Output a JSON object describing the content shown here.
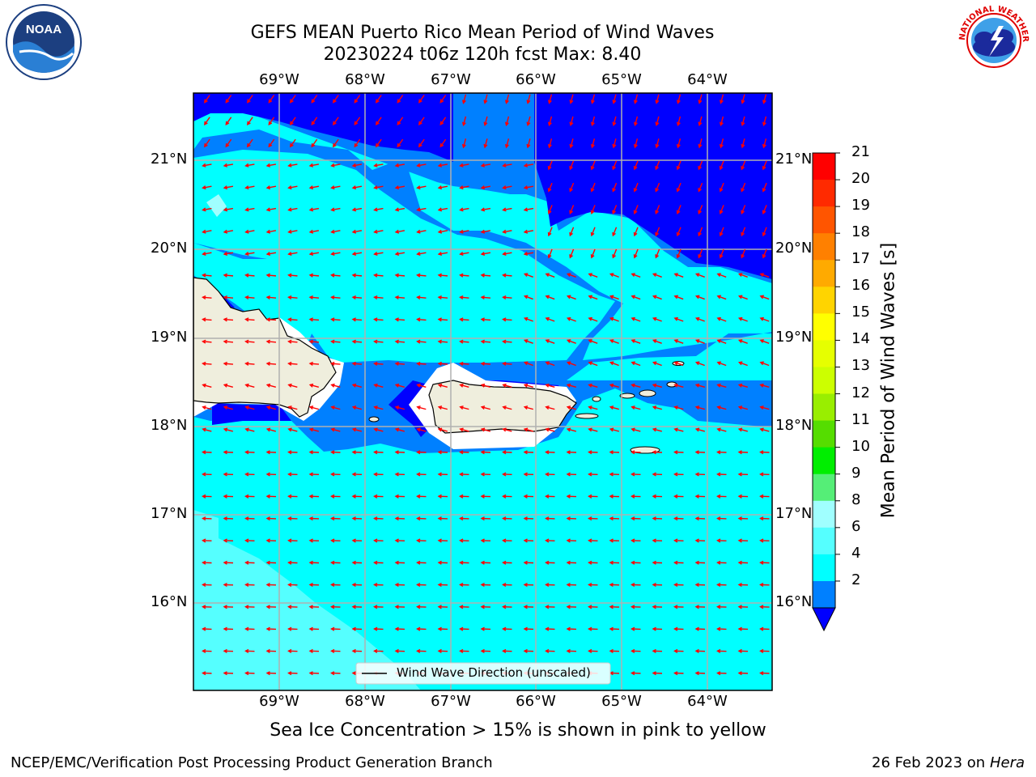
{
  "title_line1": "GEFS MEAN Puerto Rico Mean Period of Wind Waves",
  "title_line2": "20230224 t06z 120h fcst   Max: 8.40",
  "lon_labels": [
    "69°W",
    "68°W",
    "67°W",
    "66°W",
    "65°W",
    "64°W"
  ],
  "lat_labels": [
    "21°N",
    "20°N",
    "19°N",
    "18°N",
    "17°N",
    "16°N"
  ],
  "legend_text": "Wind Wave Direction (unscaled)",
  "colorbar": {
    "title": "Mean Period of Wind Waves [s]",
    "ticks": [
      "21",
      "20",
      "19",
      "18",
      "17",
      "16",
      "15",
      "14",
      "13",
      "12",
      "11",
      "10",
      "9",
      "8",
      "6",
      "4",
      "2"
    ],
    "colors": [
      "#ff0000",
      "#ff2a00",
      "#ff5500",
      "#ff8000",
      "#ffaa00",
      "#ffd400",
      "#ffff00",
      "#e6ff00",
      "#ccff00",
      "#99ee00",
      "#55dd00",
      "#00ee00",
      "#55ee77",
      "#a0ffff",
      "#55ffff",
      "#00ffff",
      "#0080ff"
    ],
    "extend_color": "#0000ff"
  },
  "subcaption": "Sea Ice Concentration > 15% is shown in pink to yellow",
  "footer_left": "NCEP/EMC/Verification Post Processing Product Generation Branch",
  "footer_date": "26 Feb 2023 on",
  "footer_host": "Hera",
  "logo_left_text": "NOAA",
  "logo_right_text": "NATIONAL WEATHER SERVICE",
  "colors": {
    "deep_blue": "#0000ff",
    "mid_blue": "#0080ff",
    "cyan": "#00ffff",
    "light_cyan": "#55ffff",
    "pale_cyan": "#a0ffff",
    "land": "#efeedd",
    "arrow": "#ff0000"
  }
}
